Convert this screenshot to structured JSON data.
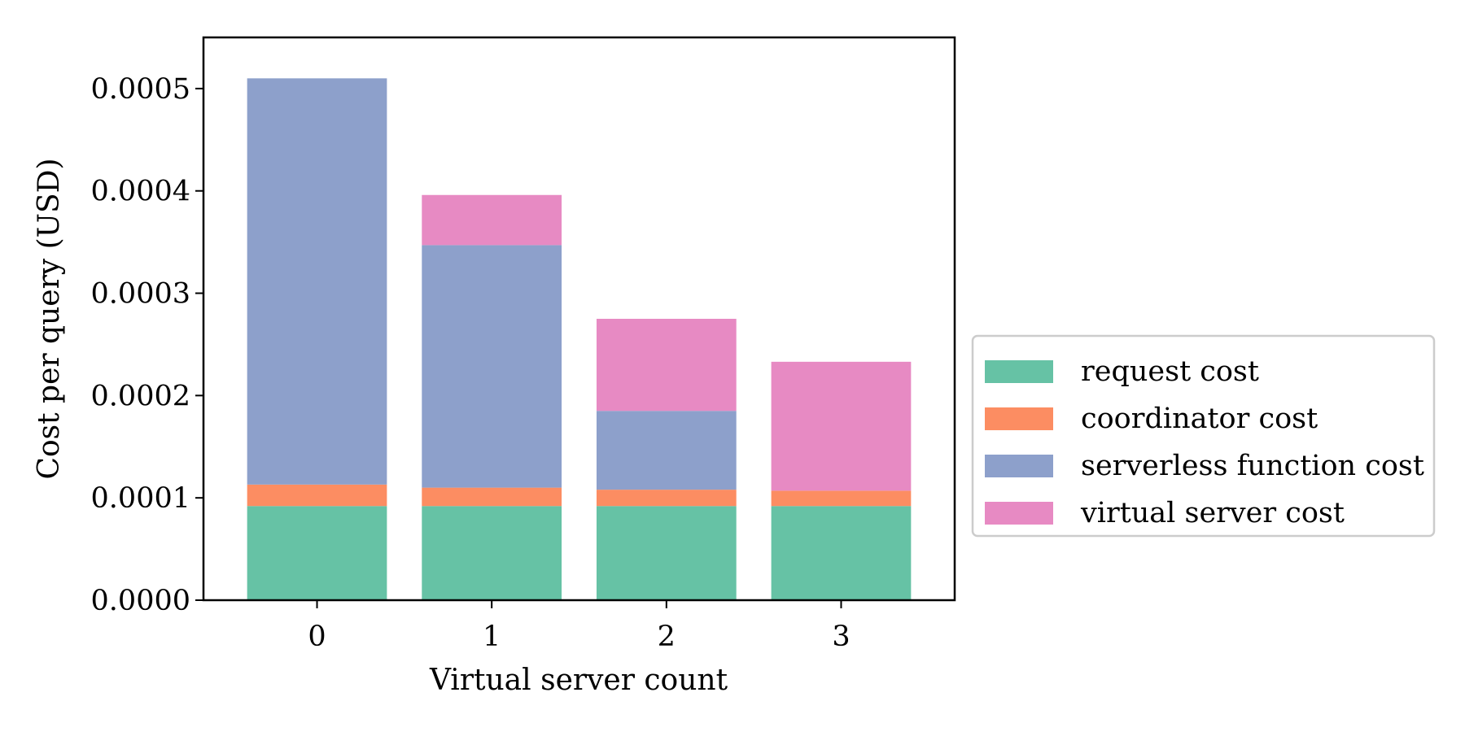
{
  "chart_data": {
    "type": "bar",
    "stacked": true,
    "categories": [
      "0",
      "1",
      "2",
      "3"
    ],
    "xlabel": "Virtual server count",
    "ylabel": "Cost per query (USD)",
    "ylim": [
      0,
      0.00055
    ],
    "yticks": [
      "0.0000",
      "0.0001",
      "0.0002",
      "0.0003",
      "0.0004",
      "0.0005"
    ],
    "ytick_values": [
      0,
      0.0001,
      0.0002,
      0.0003,
      0.0004,
      0.0005
    ],
    "grid": false,
    "legend_position": "outside-right",
    "series": [
      {
        "name": "request cost",
        "color": "#66c2a5",
        "values": [
          9.2e-05,
          9.2e-05,
          9.2e-05,
          9.2e-05
        ]
      },
      {
        "name": "coordinator cost",
        "color": "#fc8d62",
        "values": [
          2.1e-05,
          1.8e-05,
          1.6e-05,
          1.5e-05
        ]
      },
      {
        "name": "serverless function cost",
        "color": "#8da0cb",
        "values": [
          0.000397,
          0.000237,
          7.7e-05,
          0.0
        ]
      },
      {
        "name": "virtual server cost",
        "color": "#e78ac3",
        "values": [
          0.0,
          4.9e-05,
          9e-05,
          0.000126
        ]
      }
    ]
  }
}
